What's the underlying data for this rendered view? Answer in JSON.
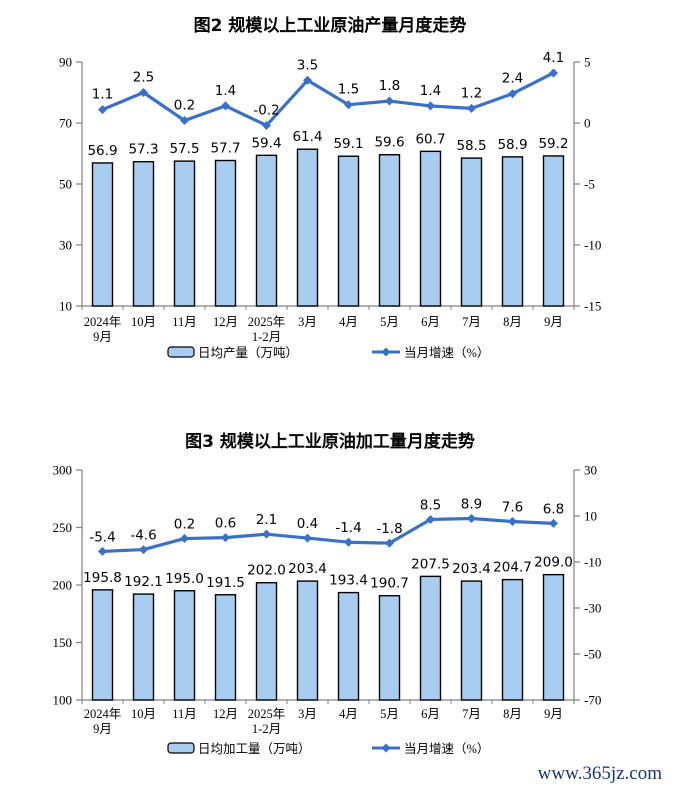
{
  "page": {
    "watermark": "www.365jz.com"
  },
  "colors": {
    "bar_fill": "#A9CDF1",
    "bar_border": "#000000",
    "line": "#3A70C8",
    "axis": "#808080",
    "text": "#000000",
    "watermark": "#1A3473"
  },
  "chart_data": [
    {
      "type": "bar+line",
      "title": "图2 规模以上工业原油产量月度走势",
      "categories": [
        [
          "2024年",
          "9月"
        ],
        [
          "10月"
        ],
        [
          "11月"
        ],
        [
          "12月"
        ],
        [
          "2025年",
          "1-2月"
        ],
        [
          "3月"
        ],
        [
          "4月"
        ],
        [
          "5月"
        ],
        [
          "6月"
        ],
        [
          "7月"
        ],
        [
          "8月"
        ],
        [
          "9月"
        ]
      ],
      "series": [
        {
          "name": "日均产量（万吨）",
          "type": "bar",
          "axis": "left",
          "values": [
            56.9,
            57.3,
            57.5,
            57.7,
            59.4,
            61.4,
            59.1,
            59.6,
            60.7,
            58.5,
            58.9,
            59.2
          ]
        },
        {
          "name": "当月增速（%）",
          "type": "line",
          "axis": "right",
          "values": [
            1.1,
            2.5,
            0.2,
            1.4,
            -0.2,
            3.5,
            1.5,
            1.8,
            1.4,
            1.2,
            2.4,
            4.1
          ]
        }
      ],
      "left_axis": {
        "min": 10,
        "max": 90,
        "ticks": [
          90,
          70,
          50,
          30,
          10
        ]
      },
      "right_axis": {
        "min": -15,
        "max": 5,
        "ticks": [
          5,
          0,
          -5,
          -10,
          -15
        ]
      },
      "legend_position": "bottom",
      "grid": false
    },
    {
      "type": "bar+line",
      "title": "图3 规模以上工业原油加工量月度走势",
      "categories": [
        [
          "2024年",
          "9月"
        ],
        [
          "10月"
        ],
        [
          "11月"
        ],
        [
          "12月"
        ],
        [
          "2025年",
          "1-2月"
        ],
        [
          "3月"
        ],
        [
          "4月"
        ],
        [
          "5月"
        ],
        [
          "6月"
        ],
        [
          "7月"
        ],
        [
          "8月"
        ],
        [
          "9月"
        ]
      ],
      "series": [
        {
          "name": "日均加工量（万吨）",
          "type": "bar",
          "axis": "left",
          "values": [
            195.8,
            192.1,
            195.0,
            191.5,
            202.0,
            203.4,
            193.4,
            190.7,
            207.5,
            203.4,
            204.7,
            209.0
          ]
        },
        {
          "name": "当月增速（%）",
          "type": "line",
          "axis": "right",
          "values": [
            -5.4,
            -4.6,
            0.2,
            0.6,
            2.1,
            0.4,
            -1.4,
            -1.8,
            8.5,
            8.9,
            7.6,
            6.8
          ]
        }
      ],
      "left_axis": {
        "min": 100,
        "max": 300,
        "ticks": [
          300,
          250,
          200,
          150,
          100
        ]
      },
      "right_axis": {
        "min": -70,
        "max": 30,
        "ticks": [
          30,
          10,
          -10,
          -30,
          -50,
          -70
        ]
      },
      "legend_position": "bottom",
      "grid": false
    }
  ]
}
